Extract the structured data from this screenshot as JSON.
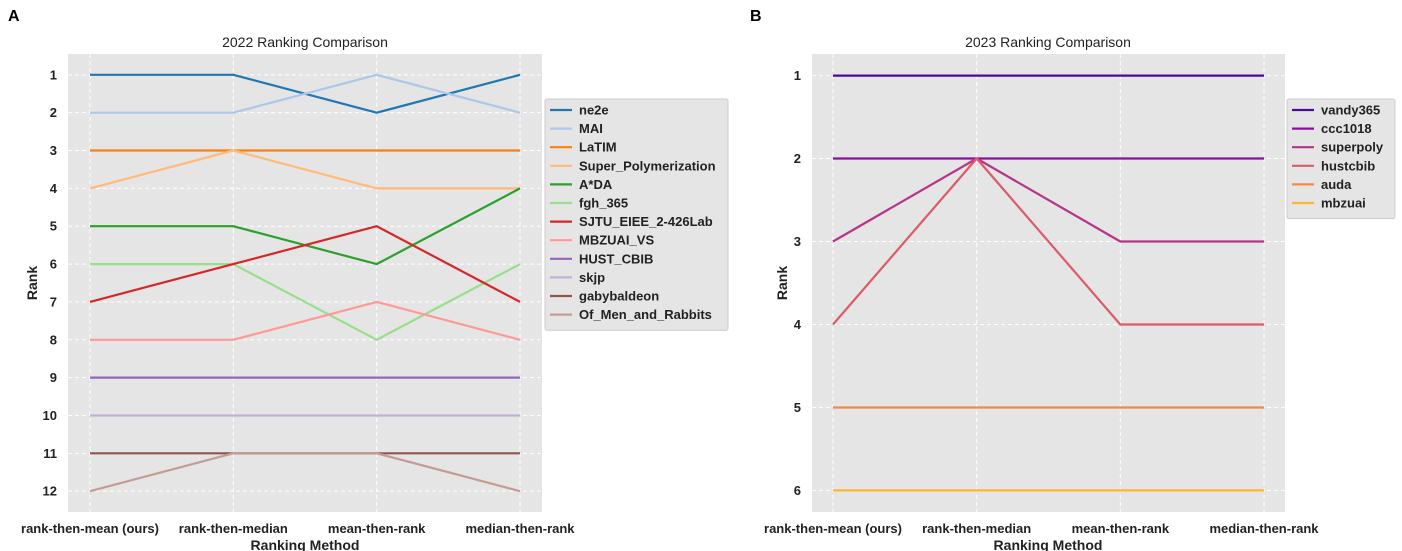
{
  "figure": {
    "xlabel": "Ranking Method",
    "ylabel": "Rank"
  },
  "chart_data": [
    {
      "type": "line",
      "panel_letter": "A",
      "title": "2022 Ranking Comparison",
      "xlabel": "Ranking Method",
      "ylabel": "Rank",
      "categories": [
        "rank-then-mean (ours)",
        "rank-then-median",
        "mean-then-rank",
        "median-then-rank"
      ],
      "y_ticks": [
        1,
        2,
        3,
        4,
        5,
        6,
        7,
        8,
        9,
        10,
        11,
        12
      ],
      "ylim": [
        12.55,
        0.45
      ],
      "y_inverted": true,
      "grid": true,
      "legend_position": "right",
      "series": [
        {
          "name": "ne2e",
          "color": "#1f77b4",
          "values": [
            1,
            1,
            2,
            1
          ]
        },
        {
          "name": "MAI",
          "color": "#aec7e8",
          "values": [
            2,
            2,
            1,
            2
          ]
        },
        {
          "name": "LaTIM",
          "color": "#ff7f0e",
          "values": [
            3,
            3,
            3,
            3
          ]
        },
        {
          "name": "Super_Polymerization",
          "color": "#ffbb78",
          "values": [
            4,
            3,
            4,
            4
          ]
        },
        {
          "name": "A*DA",
          "color": "#2ca02c",
          "values": [
            5,
            5,
            6,
            4
          ]
        },
        {
          "name": "fgh_365",
          "color": "#98df8a",
          "values": [
            6,
            6,
            8,
            6
          ]
        },
        {
          "name": "SJTU_EIEE_2-426Lab",
          "color": "#d62728",
          "values": [
            7,
            6,
            5,
            7
          ]
        },
        {
          "name": "MBZUAI_VS",
          "color": "#ff9896",
          "values": [
            8,
            8,
            7,
            8
          ]
        },
        {
          "name": "HUST_CBIB",
          "color": "#9467bd",
          "values": [
            9,
            9,
            9,
            9
          ]
        },
        {
          "name": "skjp",
          "color": "#c5b0d5",
          "values": [
            10,
            10,
            10,
            10
          ]
        },
        {
          "name": "gabybaldeon",
          "color": "#8c564b",
          "values": [
            11,
            11,
            11,
            11
          ]
        },
        {
          "name": "Of_Men_and_Rabbits",
          "color": "#c49c94",
          "values": [
            12,
            11,
            11,
            12
          ]
        }
      ]
    },
    {
      "type": "line",
      "panel_letter": "B",
      "title": "2023 Ranking Comparison",
      "xlabel": "Ranking Method",
      "ylabel": "Rank",
      "categories": [
        "rank-then-mean (ours)",
        "rank-then-median",
        "mean-then-rank",
        "median-then-rank"
      ],
      "y_ticks": [
        1,
        2,
        3,
        4,
        5,
        6
      ],
      "ylim": [
        6.26,
        0.74
      ],
      "y_inverted": true,
      "grid": true,
      "legend_position": "right",
      "series": [
        {
          "name": "vandy365",
          "color": "#4b0a9b",
          "values": [
            1,
            1,
            1,
            1
          ]
        },
        {
          "name": "ccc1018",
          "color": "#8c0fa0",
          "values": [
            2,
            2,
            2,
            2
          ]
        },
        {
          "name": "superpoly",
          "color": "#b8338a",
          "values": [
            3,
            2,
            3,
            3
          ]
        },
        {
          "name": "hustcbib",
          "color": "#db5c68",
          "values": [
            4,
            2,
            4,
            4
          ]
        },
        {
          "name": "auda",
          "color": "#f48849",
          "values": [
            5,
            5,
            5,
            5
          ]
        },
        {
          "name": "mbzuai",
          "color": "#fdb62d",
          "values": [
            6,
            6,
            6,
            6
          ]
        }
      ]
    }
  ]
}
